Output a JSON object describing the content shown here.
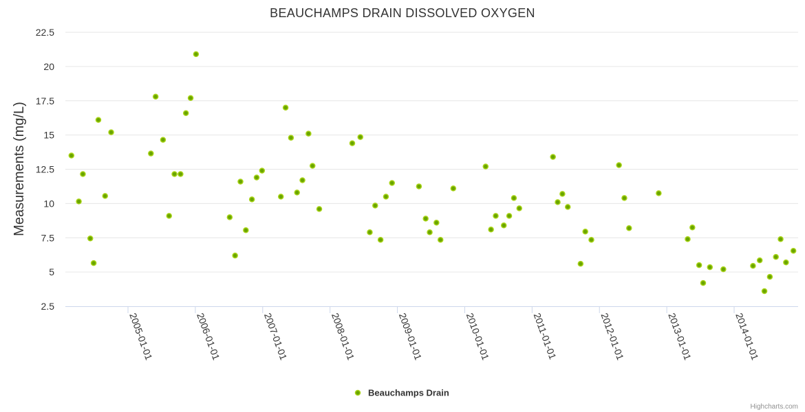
{
  "chart_data": {
    "type": "scatter",
    "title": "BEAUCHAMPS DRAIN DISSOLVED OXYGEN",
    "xlabel": "",
    "ylabel": "Measurements (mg/L)",
    "ylim": [
      2.5,
      22.5
    ],
    "yticks": [
      "2.5",
      "5",
      "7.5",
      "10",
      "12.5",
      "15",
      "17.5",
      "20",
      "22.5"
    ],
    "xlim": [
      2004.07,
      2014.95
    ],
    "xticks": [
      {
        "label": "2005-01-01",
        "value": 2005.0
      },
      {
        "label": "2006-01-01",
        "value": 2006.0
      },
      {
        "label": "2007-01-01",
        "value": 2007.0
      },
      {
        "label": "2008-01-01",
        "value": 2008.0
      },
      {
        "label": "2009-01-01",
        "value": 2009.0
      },
      {
        "label": "2010-01-01",
        "value": 2010.0
      },
      {
        "label": "2011-01-01",
        "value": 2011.0
      },
      {
        "label": "2012-01-01",
        "value": 2012.0
      },
      {
        "label": "2013-01-01",
        "value": 2013.0
      },
      {
        "label": "2014-01-01",
        "value": 2014.0
      }
    ],
    "grid": true,
    "legend_position": "bottom-center",
    "series": [
      {
        "name": "Beauchamps Drain",
        "color": "#6aa500",
        "points": [
          [
            2004.16,
            13.5
          ],
          [
            2004.27,
            10.15
          ],
          [
            2004.33,
            12.15
          ],
          [
            2004.44,
            7.45
          ],
          [
            2004.49,
            5.65
          ],
          [
            2004.56,
            16.1
          ],
          [
            2004.66,
            10.55
          ],
          [
            2004.75,
            15.2
          ],
          [
            2005.34,
            13.65
          ],
          [
            2005.41,
            17.8
          ],
          [
            2005.52,
            14.65
          ],
          [
            2005.61,
            9.1
          ],
          [
            2005.69,
            12.15
          ],
          [
            2005.78,
            12.15
          ],
          [
            2005.86,
            16.6
          ],
          [
            2005.93,
            17.7
          ],
          [
            2006.01,
            20.9
          ],
          [
            2006.51,
            9.0
          ],
          [
            2006.59,
            6.2
          ],
          [
            2006.67,
            11.6
          ],
          [
            2006.75,
            8.05
          ],
          [
            2006.84,
            10.3
          ],
          [
            2006.91,
            11.9
          ],
          [
            2006.99,
            12.4
          ],
          [
            2007.27,
            10.5
          ],
          [
            2007.34,
            17.0
          ],
          [
            2007.42,
            14.8
          ],
          [
            2007.51,
            10.8
          ],
          [
            2007.59,
            11.7
          ],
          [
            2007.68,
            15.1
          ],
          [
            2007.74,
            12.75
          ],
          [
            2007.84,
            9.6
          ],
          [
            2008.33,
            14.4
          ],
          [
            2008.45,
            14.85
          ],
          [
            2008.59,
            7.9
          ],
          [
            2008.67,
            9.85
          ],
          [
            2008.75,
            7.35
          ],
          [
            2008.83,
            10.5
          ],
          [
            2008.92,
            11.5
          ],
          [
            2009.32,
            11.25
          ],
          [
            2009.42,
            8.9
          ],
          [
            2009.48,
            7.9
          ],
          [
            2009.58,
            8.6
          ],
          [
            2009.64,
            7.35
          ],
          [
            2009.83,
            11.1
          ],
          [
            2010.31,
            12.7
          ],
          [
            2010.39,
            8.1
          ],
          [
            2010.46,
            9.1
          ],
          [
            2010.58,
            8.4
          ],
          [
            2010.66,
            9.1
          ],
          [
            2010.73,
            10.4
          ],
          [
            2010.81,
            9.65
          ],
          [
            2011.31,
            13.4
          ],
          [
            2011.38,
            10.1
          ],
          [
            2011.45,
            10.7
          ],
          [
            2011.53,
            9.75
          ],
          [
            2011.72,
            5.6
          ],
          [
            2011.79,
            7.95
          ],
          [
            2011.88,
            7.35
          ],
          [
            2012.29,
            12.8
          ],
          [
            2012.37,
            10.4
          ],
          [
            2012.44,
            8.2
          ],
          [
            2012.88,
            10.75
          ],
          [
            2013.31,
            7.4
          ],
          [
            2013.38,
            8.25
          ],
          [
            2013.48,
            5.5
          ],
          [
            2013.54,
            4.2
          ],
          [
            2013.64,
            5.35
          ],
          [
            2013.84,
            5.2
          ],
          [
            2014.28,
            5.45
          ],
          [
            2014.38,
            5.85
          ],
          [
            2014.45,
            3.6
          ],
          [
            2014.53,
            4.65
          ],
          [
            2014.62,
            6.1
          ],
          [
            2014.69,
            7.4
          ],
          [
            2014.77,
            5.7
          ],
          [
            2014.88,
            6.55
          ]
        ]
      }
    ],
    "credits": "Highcharts.com"
  }
}
